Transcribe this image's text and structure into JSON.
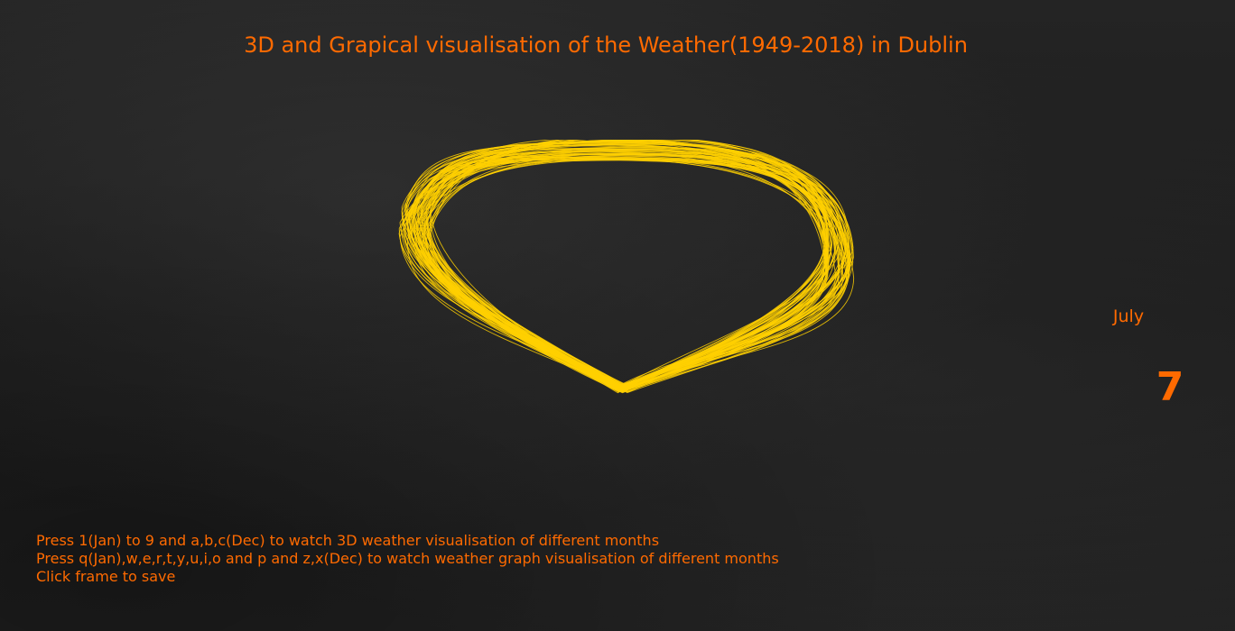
{
  "app": {
    "title": "3D and Grapical visualisation of the Weather(1949-2018) in Dublin"
  },
  "month": {
    "name": "July",
    "number": "7"
  },
  "instructions": {
    "line1": "Press 1(Jan) to 9 and a,b,c(Dec) to watch 3D weather visualisation of different months",
    "line2": "Press q(Jan),w,e,r,t,y,u,i,o and p and z,x(Dec) to watch weather graph visualisation of different months",
    "line3": "Click frame to save"
  },
  "colors": {
    "text_accent": "#ff6a00",
    "trace": "#ffd000",
    "background": "#1f1f1f"
  },
  "visualisation": {
    "type": "3d-loop-trace",
    "curve_count": 70
  }
}
